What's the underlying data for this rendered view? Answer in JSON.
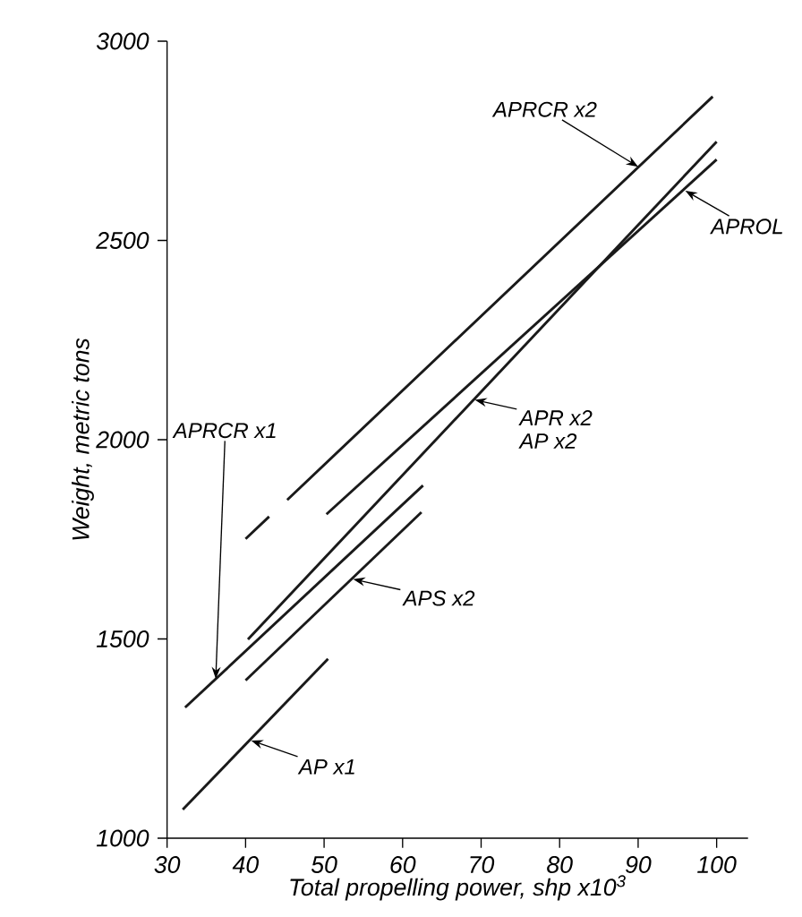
{
  "chart_data": {
    "type": "line",
    "xlabel": "Total propelling power, shp x10$^{3}$",
    "ylabel": "Weight, metric tons",
    "xlim": [
      30,
      104
    ],
    "ylim": [
      1000,
      3000
    ],
    "xticks": [
      30,
      40,
      50,
      60,
      70,
      80,
      90,
      100
    ],
    "yticks": [
      1000,
      1500,
      2000,
      2500,
      3000
    ],
    "grid": false,
    "marker": "none",
    "line_style": "solid",
    "series": [
      {
        "color": "#1a1a1a",
        "x": [
          40,
          43,
          44,
          45.3,
          99.5
        ],
        "values": [
          1751,
          1807,
          null,
          1849,
          2861
        ]
      },
      {
        "color": "#1a1a1a",
        "x": [
          50.3,
          100
        ],
        "values": [
          1813,
          2703
        ]
      },
      {
        "color": "#1a1a1a",
        "x": [
          40.3,
          100
        ],
        "values": [
          1499,
          2748
        ]
      },
      {
        "color": "#1a1a1a",
        "x": [
          32.3,
          62.6
        ],
        "values": [
          1328,
          1885
        ]
      },
      {
        "color": "#1a1a1a",
        "x": [
          40,
          62.4
        ],
        "values": [
          1396,
          1818
        ]
      },
      {
        "color": "#1a1a1a",
        "x": [
          32,
          50.5
        ],
        "values": [
          1072,
          1450
        ]
      }
    ],
    "annotations": [
      {
        "text": "APRCR x2",
        "x": 90,
        "y": 2685
      },
      {
        "text": "APROL",
        "x": 96,
        "y": 2625
      },
      {
        "text": "APR x2",
        "x": 69.2,
        "y": 2100
      },
      "AP x2",
      {
        "text": "APRCR x1",
        "x": 36.2,
        "y": 1400
      },
      {
        "text": "APS x2",
        "x": 53.7,
        "y": 1650
      },
      {
        "text": "AP x1",
        "x": 40.7,
        "y": 1245
      }
    ]
  }
}
